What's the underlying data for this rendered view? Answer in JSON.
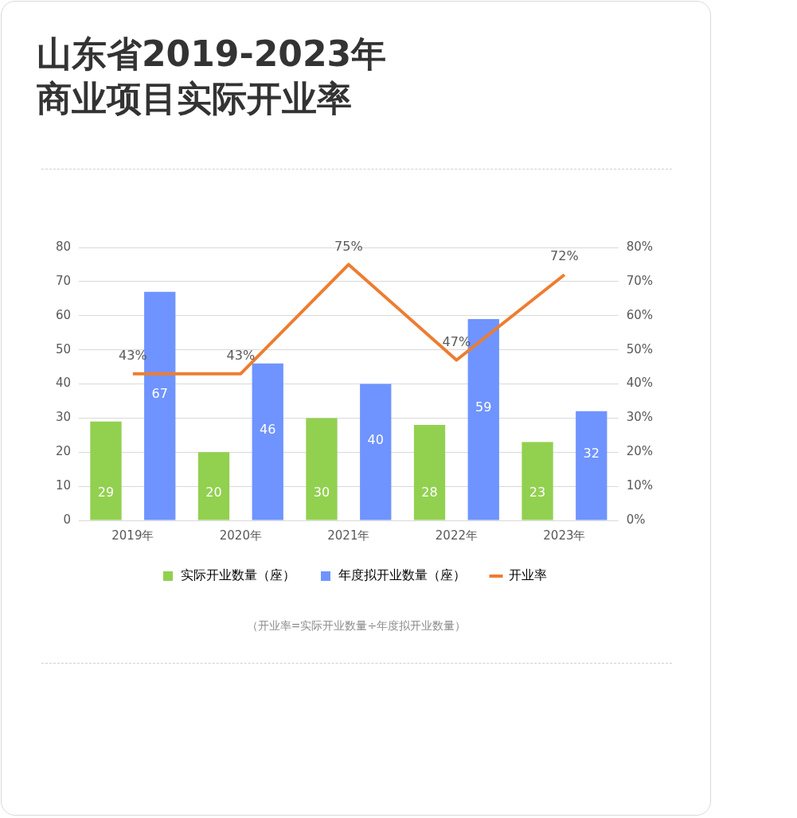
{
  "chart_data": {
    "type": "bar",
    "title": "山东省2019-2023年商业项目实际开业率",
    "categories": [
      "2019年",
      "2020年",
      "2021年",
      "2022年",
      "2023年"
    ],
    "series": [
      {
        "name": "实际开业数量（座）",
        "color": "#92d050",
        "values": [
          29,
          20,
          30,
          28,
          23
        ]
      },
      {
        "name": "年度拟开业数量（座）",
        "color": "#6f94ff",
        "values": [
          67,
          46,
          40,
          59,
          32
        ]
      },
      {
        "name": "开业率",
        "type": "line",
        "axis": "y2",
        "color": "#ed7d31",
        "values": [
          43,
          43,
          75,
          47,
          72
        ],
        "value_labels": [
          "43%",
          "43%",
          "75%",
          "47%",
          "72%"
        ]
      }
    ],
    "ylim": [
      0,
      80
    ],
    "yticks": [
      0,
      10,
      20,
      30,
      40,
      50,
      60,
      70,
      80
    ],
    "y2lim": [
      0,
      80
    ],
    "y2ticks": [
      {
        "value": 0,
        "label": "0%"
      },
      {
        "value": 10,
        "label": "10%"
      },
      {
        "value": 20,
        "label": "20%"
      },
      {
        "value": 30,
        "label": "30%"
      },
      {
        "value": 40,
        "label": "40%"
      },
      {
        "value": 50,
        "label": "50%"
      },
      {
        "value": 60,
        "label": "60%"
      },
      {
        "value": 70,
        "label": "70%"
      },
      {
        "value": 80,
        "label": "80%"
      }
    ],
    "grid": "y",
    "legend": "bottom",
    "data_labels": true,
    "marker": "none",
    "annotations": [
      "（开业率=实际开业数量÷年度拟开业数量）"
    ]
  }
}
